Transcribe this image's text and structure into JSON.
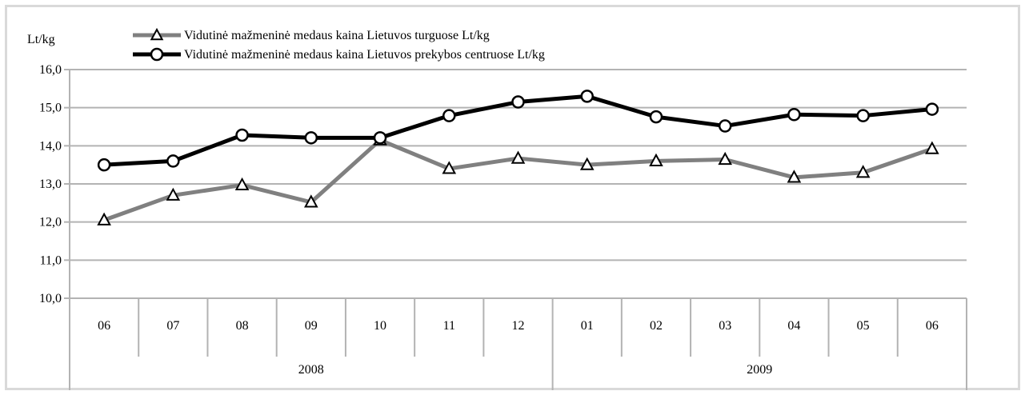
{
  "chart_data": {
    "type": "line",
    "ylabel": "Lt/kg",
    "ylim": [
      10,
      16
    ],
    "yticks": [
      "10,0",
      "11,0",
      "12,0",
      "13,0",
      "14,0",
      "15,0",
      "16,0"
    ],
    "categories": [
      "06",
      "07",
      "08",
      "09",
      "10",
      "11",
      "12",
      "01",
      "02",
      "03",
      "04",
      "05",
      "06"
    ],
    "groups": [
      {
        "label": "2008",
        "count": 7
      },
      {
        "label": "2009",
        "count": 6
      }
    ],
    "grid": true,
    "legend_position": "top-left",
    "series": [
      {
        "name": "Vidutinė mažmeninė medaus kaina Lietuvos turguose Lt/kg",
        "marker": "triangle",
        "color": "#808080",
        "values": [
          12.05,
          12.7,
          12.97,
          12.52,
          14.15,
          13.4,
          13.67,
          13.5,
          13.6,
          13.64,
          13.17,
          13.3,
          13.92
        ]
      },
      {
        "name": "Vidutinė mažmeninė medaus kaina Lietuvos prekybos centruose Lt/kg",
        "marker": "circle",
        "color": "#000000",
        "values": [
          13.5,
          13.6,
          14.28,
          14.21,
          14.21,
          14.79,
          15.15,
          15.3,
          14.76,
          14.52,
          14.82,
          14.79,
          14.96
        ]
      }
    ]
  }
}
